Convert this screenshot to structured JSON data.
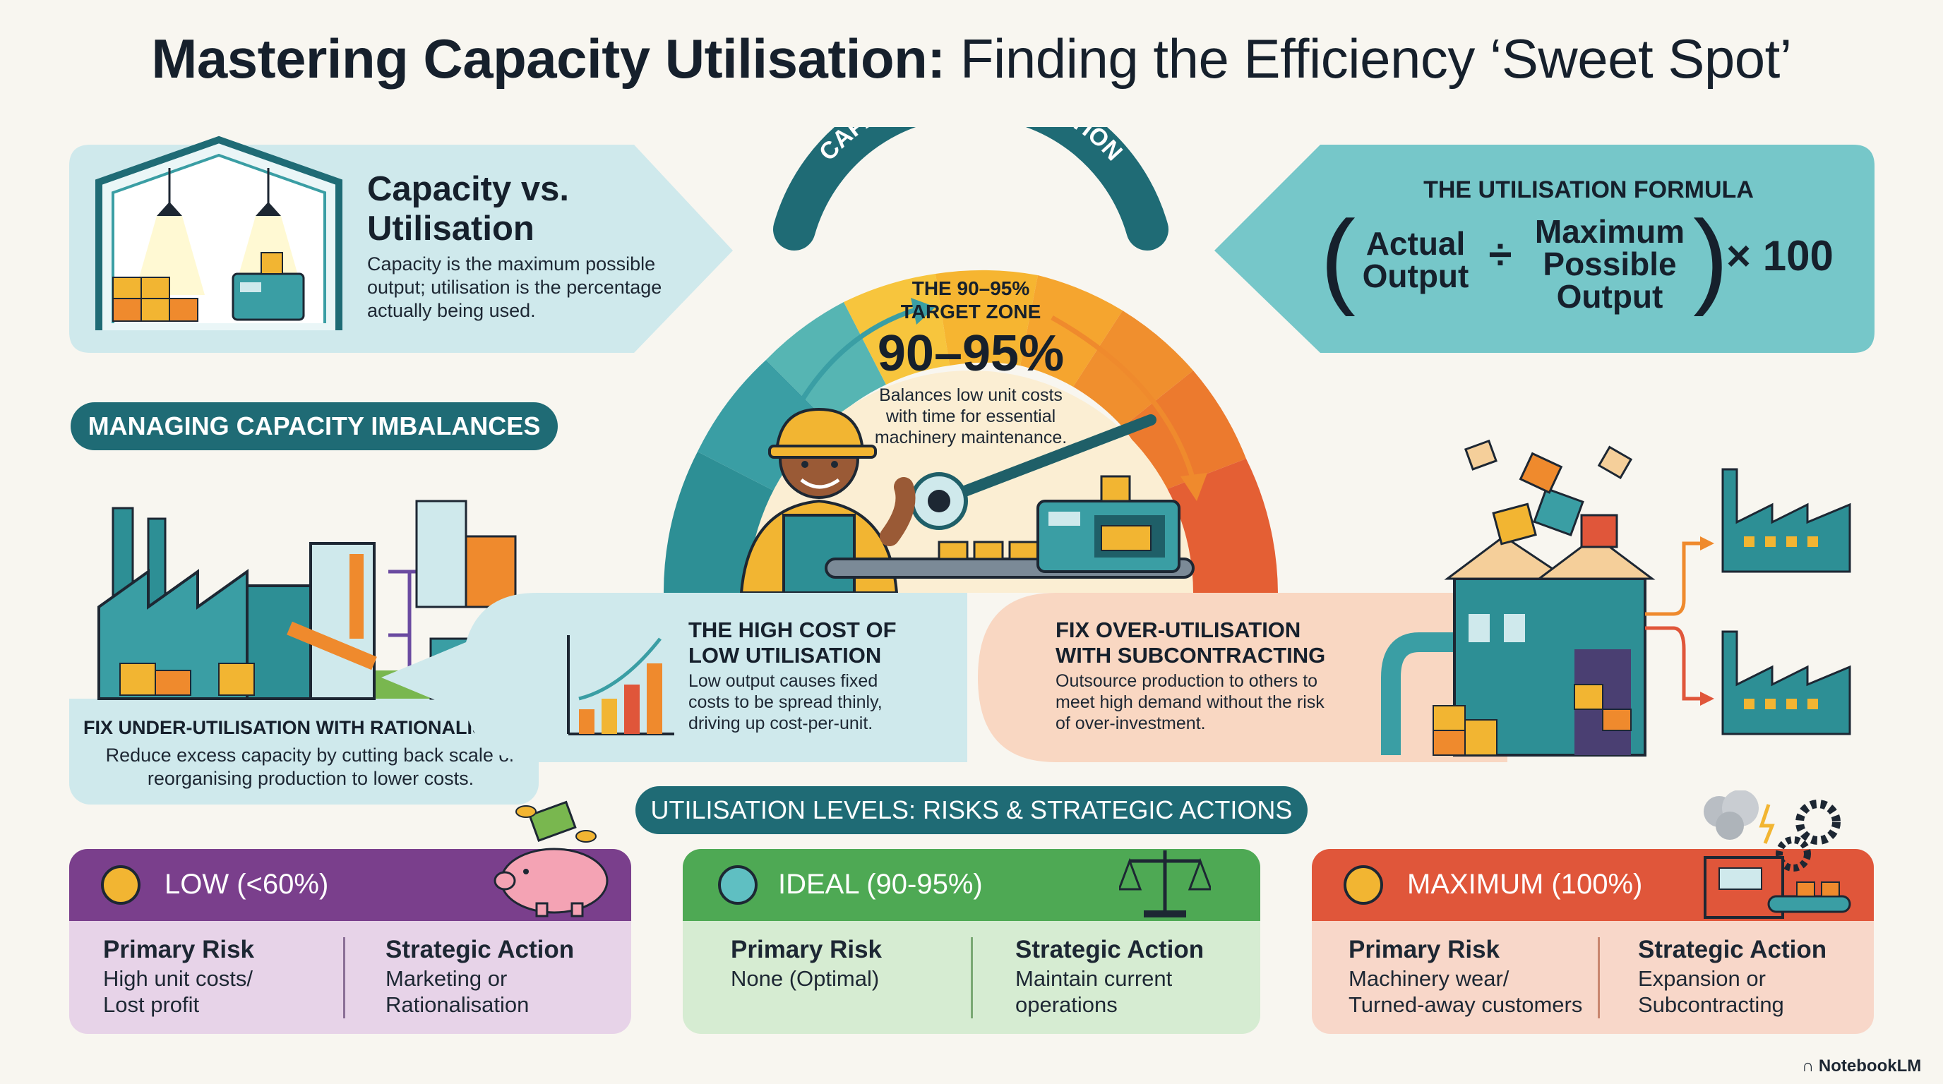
{
  "title": {
    "bold": "Mastering Capacity Utilisation:",
    "light": " Finding the Efficiency ‘Sweet Spot’"
  },
  "capacity_box": {
    "heading_line1": "Capacity vs.",
    "heading_line2": "Utilisation",
    "body": "Capacity is the maximum possible output; utilisation is the percentage actually being used."
  },
  "gauge": {
    "arc_label": "CAPACITY VS. UTILISATION",
    "zone_label_line1": "THE 90–95%",
    "zone_label_line2": "TARGET ZONE",
    "big_value": "90–95%",
    "description": "Balances low unit costs with time for essential machinery maintenance."
  },
  "formula": {
    "heading": "THE UTILISATION FORMULA",
    "numerator_line1": "Actual",
    "numerator_line2": "Output",
    "operator": "÷",
    "denominator_line1": "Maximum",
    "denominator_line2": "Possible",
    "denominator_line3": "Output",
    "multiplier": "× 100"
  },
  "imbalances": {
    "pill": "MANAGING CAPACITY IMBALANCES",
    "under_heading": "FIX UNDER-UTILISATION WITH RATIONALISATION",
    "under_body": "Reduce excess capacity by cutting back scale or reorganising production to lower costs."
  },
  "high_cost": {
    "heading_line1": "THE HIGH COST OF",
    "heading_line2": "LOW UTILISATION",
    "body": "Low output causes fixed costs to be spread thinly, driving up cost-per-unit."
  },
  "over": {
    "heading_line1": "FIX OVER-UTILISATION",
    "heading_line2": "WITH SUBCONTRACTING",
    "body": "Outsource production to others to meet high demand without the risk of over-investment."
  },
  "levels": {
    "pill": "UTILISATION LEVELS: RISKS & STRATEGIC ACTIONS",
    "risk_label": "Primary Risk",
    "action_label": "Strategic Action",
    "cards": [
      {
        "title": "LOW (<60%)",
        "risk_line1": "High unit costs/",
        "risk_line2": "Lost profit",
        "action_line1": "Marketing or",
        "action_line2": "Rationalisation",
        "head_color": "#7a3f8c",
        "body_color": "#e7d3e8",
        "face_color": "#f2b532"
      },
      {
        "title": "IDEAL (90-95%)",
        "risk_line1": "None (Optimal)",
        "risk_line2": "",
        "action_line1": "Maintain current",
        "action_line2": "operations",
        "head_color": "#4ea954",
        "body_color": "#d6ecd2",
        "face_color": "#5fbfc2"
      },
      {
        "title": "MAXIMUM (100%)",
        "risk_line1": "Machinery wear/",
        "risk_line2": "Turned-away customers",
        "action_line1": "Expansion or",
        "action_line2": "Subcontracting",
        "head_color": "#e0563a",
        "body_color": "#f8d7c9",
        "face_color": "#f2b532"
      }
    ]
  },
  "brand": "NotebookLM",
  "colors": {
    "teal_dark": "#1f6b75",
    "teal": "#3a9ea4",
    "panel_teal": "#cfe9ec",
    "panel_peach": "#f9d7c2",
    "orange": "#ef8a2d",
    "yellow": "#f2b532",
    "red_orange": "#e0563a"
  }
}
